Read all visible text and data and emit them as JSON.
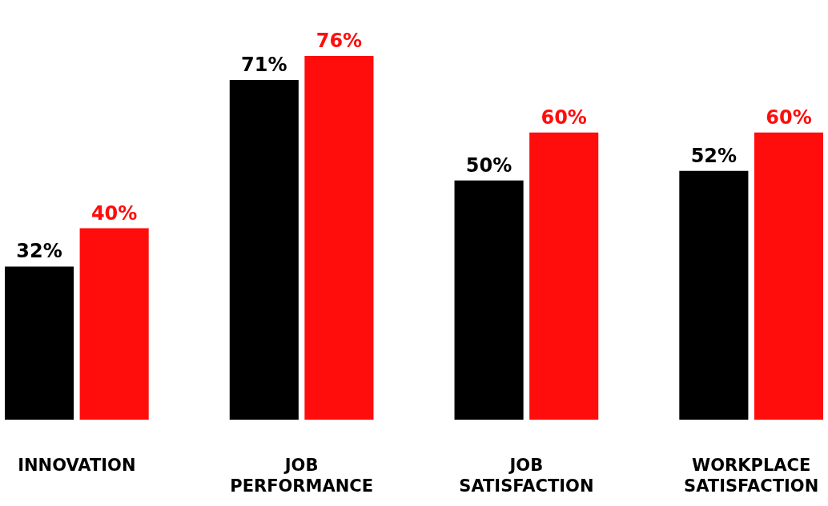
{
  "chart_data": {
    "type": "bar",
    "categories": [
      "INNOVATION",
      "JOB PERFORMANCE",
      "JOB SATISFACTION",
      "WORKPLACE SATISFACTION"
    ],
    "series": [
      {
        "color": "#000000",
        "values": [
          32,
          71,
          50,
          52
        ],
        "value_labels": [
          "32%",
          "71%",
          "50%",
          "52%"
        ]
      },
      {
        "color": "#ff0d0d",
        "values": [
          40,
          76,
          60,
          60
        ],
        "value_labels": [
          "40%",
          "76%",
          "60%",
          "60%"
        ]
      }
    ]
  }
}
